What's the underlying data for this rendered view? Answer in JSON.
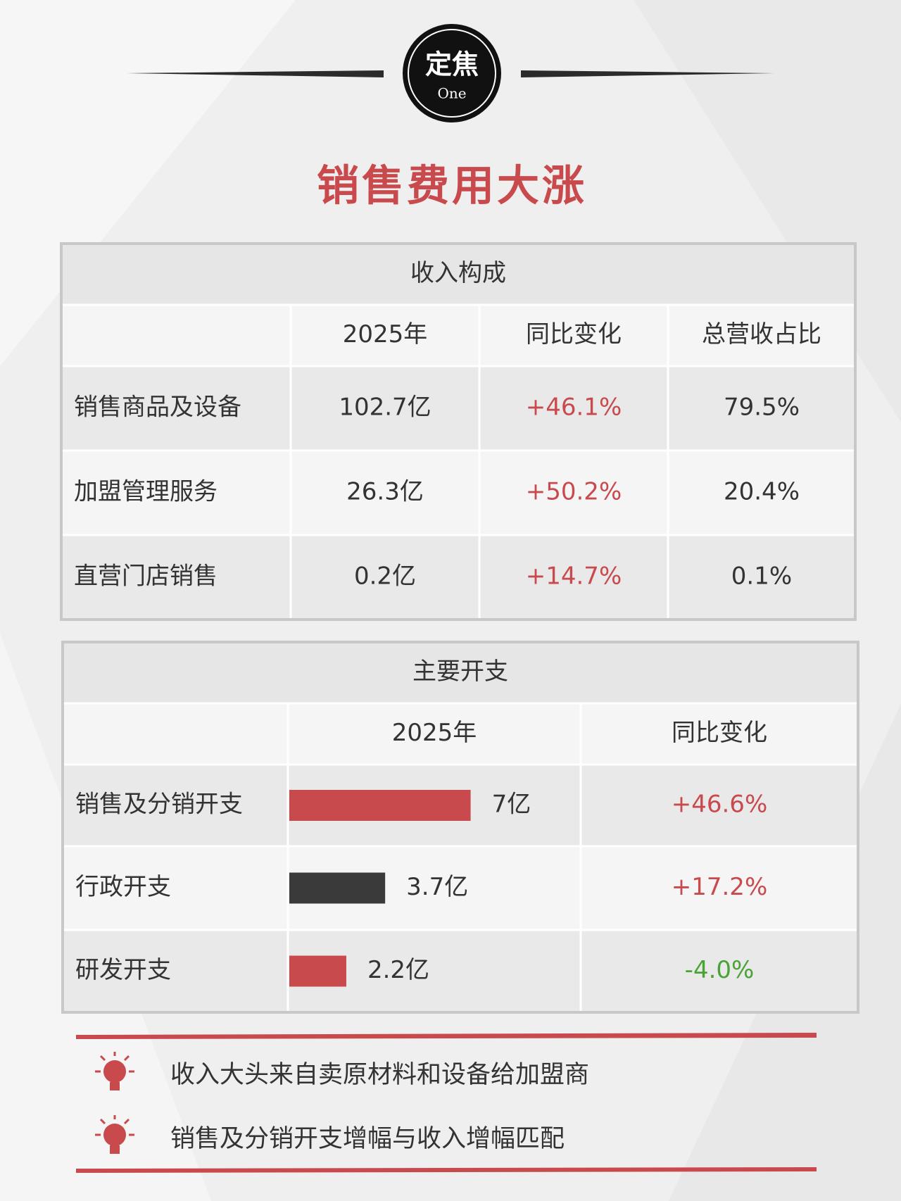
{
  "badge": {
    "title": "定焦",
    "subtitle": "One"
  },
  "title": "销售费用大涨",
  "revenue_table": {
    "title": "收入构成",
    "columns": [
      "2025年",
      "同比变化",
      "总营收占比"
    ],
    "rows": [
      {
        "label": "销售商品及设备",
        "amount": "102.7亿",
        "change": "+46.1%",
        "change_color": "#c94a4d",
        "share": "79.5%"
      },
      {
        "label": "加盟管理服务",
        "amount": "26.3亿",
        "change": "+50.2%",
        "change_color": "#c94a4d",
        "share": "20.4%"
      },
      {
        "label": "直营门店销售",
        "amount": "0.2亿",
        "change": "+14.7%",
        "change_color": "#c94a4d",
        "share": "0.1%"
      }
    ]
  },
  "expense_table": {
    "title": "主要开支",
    "columns": [
      "2025年",
      "同比变化"
    ],
    "rows": [
      {
        "label": "销售及分销开支",
        "value": 7,
        "value_label": "7亿",
        "bar_color": "#c94a4d",
        "change": "+46.6%",
        "change_color": "#c94a4d"
      },
      {
        "label": "行政开支",
        "value": 3.7,
        "value_label": "3.7亿",
        "bar_color": "#3a3a3a",
        "change": "+17.2%",
        "change_color": "#c94a4d"
      },
      {
        "label": "研发开支",
        "value": 2.2,
        "value_label": "2.2亿",
        "bar_color": "#c94a4d",
        "change": "-4.0%",
        "change_color": "#4aa334"
      }
    ]
  },
  "notes": [
    "收入大头来自卖原材料和设备给加盟商",
    "销售及分销开支增幅与收入增幅匹配"
  ]
}
